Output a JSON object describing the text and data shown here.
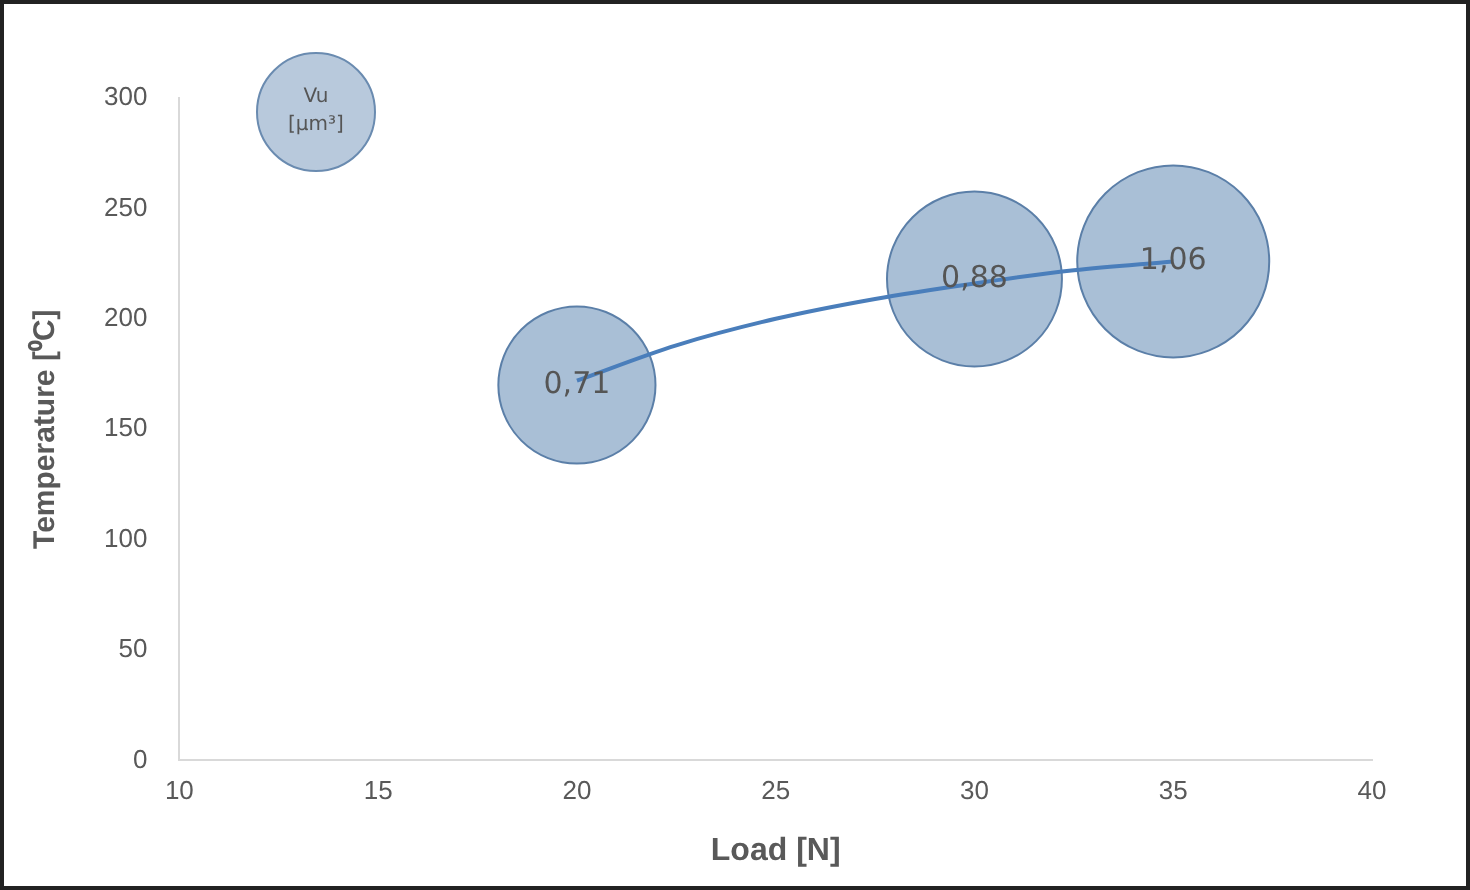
{
  "chart_data": {
    "type": "bubble",
    "xlabel": "Load [N]",
    "ylabel": "Temperature [⁰C]",
    "legend_title": "Vu [μm³]",
    "xlim": [
      10,
      40
    ],
    "xticks": [
      10,
      15,
      20,
      25,
      30,
      35,
      40
    ],
    "ylim": [
      0,
      300
    ],
    "yticks": [
      0,
      50,
      100,
      150,
      200,
      250,
      300
    ],
    "series": [
      {
        "type": "bubble",
        "color": "#a9bfd6",
        "x": [
          20,
          30,
          35
        ],
        "values": [
          170,
          218,
          226
        ],
        "sizes": [
          0.71,
          0.88,
          1.06
        ],
        "value_labels": [
          "0,71",
          "0,88",
          "1,06"
        ]
      },
      {
        "type": "line",
        "color": "#4a7ebb",
        "x": [
          20,
          22.5,
          25,
          27.5,
          30,
          32.5,
          35
        ],
        "values": [
          172,
          188,
          200,
          209,
          216,
          222,
          226
        ]
      }
    ]
  }
}
